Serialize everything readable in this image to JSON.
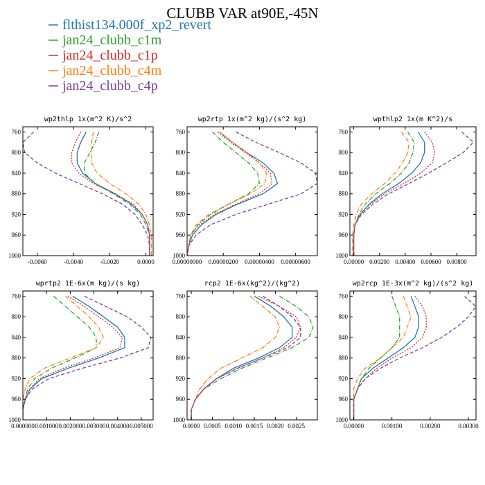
{
  "figure_title": "CLUBB VAR at90E,-45N",
  "legend": [
    {
      "label": "flthist134.000f_xp2_revert",
      "color": "#1f77b4",
      "dash": "solid"
    },
    {
      "label": "jan24_clubb_c1m",
      "color": "#2ca02c",
      "dash": "dashdot"
    },
    {
      "label": "jan24_clubb_c1p",
      "color": "#d62728",
      "dash": "dot"
    },
    {
      "label": "jan24_clubb_c4m",
      "color": "#ff7f0e",
      "dash": "dashdot"
    },
    {
      "label": "jan24_clubb_c4p",
      "color": "#7b3fa0",
      "dash": "dash"
    }
  ],
  "chart_data": [
    {
      "type": "line",
      "title": "wp2thlp  1x(m^2 K)/s^2",
      "xlim": [
        -0.0068,
        0.0004
      ],
      "ylim": [
        1000,
        750
      ],
      "yticks": [
        760,
        800,
        840,
        880,
        920,
        960,
        1000
      ],
      "xticks": [
        -0.006,
        -0.004,
        -0.002,
        0.0
      ],
      "xtick_labels": [
        "-0.0060",
        "-0.0040",
        "-0.0020",
        "0.0000"
      ],
      "y": [
        760,
        780,
        800,
        820,
        840,
        860,
        880,
        900,
        920,
        940,
        960,
        980,
        1000
      ],
      "series": [
        {
          "values": [
            -0.0033,
            -0.0036,
            -0.0038,
            -0.0038,
            -0.0035,
            -0.0028,
            -0.0017,
            -0.0008,
            -0.0002,
            0.0001,
            0.0002,
            0.0002,
            0.0002
          ]
        },
        {
          "values": [
            -0.0026,
            -0.0028,
            -0.0031,
            -0.0034,
            -0.0034,
            -0.0028,
            -0.0018,
            -0.0009,
            -0.0003,
            0.0,
            0.0002,
            0.0002,
            0.0002
          ]
        },
        {
          "values": [
            -0.0036,
            -0.0039,
            -0.0041,
            -0.0041,
            -0.0037,
            -0.0029,
            -0.0017,
            -0.0007,
            -0.0002,
            0.0001,
            0.0002,
            0.0002,
            0.0002
          ]
        },
        {
          "values": [
            -0.0029,
            -0.003,
            -0.003,
            -0.003,
            -0.0027,
            -0.002,
            -0.0011,
            -0.0004,
            0.0,
            0.0002,
            0.0003,
            0.0003,
            0.0003
          ]
        },
        {
          "values": [
            -0.0062,
            -0.0068,
            -0.0067,
            -0.006,
            -0.005,
            -0.0037,
            -0.0024,
            -0.0013,
            -0.0006,
            -0.0002,
            0.0001,
            0.0002,
            0.0002
          ]
        }
      ]
    },
    {
      "type": "line",
      "title": "wp2rtp  1x(m^2 kg)/(s^2 kg)",
      "xlim": [
        0.0,
        7.2e-06
      ],
      "ylim": [
        1000,
        750
      ],
      "yticks": [
        760,
        800,
        840,
        880,
        920,
        960,
        1000
      ],
      "xticks": [
        0.0,
        2e-06,
        4e-06,
        6e-06
      ],
      "xtick_labels": [
        "0.00000000",
        "0.00000200",
        "0.00000400",
        "0.00000600"
      ],
      "y": [
        760,
        780,
        800,
        820,
        840,
        860,
        880,
        900,
        920,
        940,
        960,
        980,
        1000
      ],
      "series": [
        {
          "values": [
            1.8e-06,
            2.5e-06,
            3.3e-06,
            4.2e-06,
            4.8e-06,
            5e-06,
            4.2e-06,
            2.8e-06,
            1.6e-06,
            8e-07,
            3e-07,
            1e-07,
            0.0
          ]
        },
        {
          "values": [
            1.4e-06,
            2e-06,
            2.7e-06,
            3.4e-06,
            3.9e-06,
            4e-06,
            3.4e-06,
            2.3e-06,
            1.3e-06,
            6e-07,
            2e-07,
            1e-07,
            0.0
          ]
        },
        {
          "values": [
            1.7e-06,
            2.4e-06,
            3.2e-06,
            4e-06,
            4.6e-06,
            4.7e-06,
            4e-06,
            2.7e-06,
            1.5e-06,
            7e-07,
            2e-07,
            1e-07,
            0.0
          ]
        },
        {
          "values": [
            1.8e-06,
            2.5e-06,
            3.3e-06,
            4e-06,
            4.4e-06,
            4.3e-06,
            3.5e-06,
            2.3e-06,
            1.2e-06,
            5e-07,
            2e-07,
            1e-07,
            0.0
          ]
        },
        {
          "values": [
            2.7e-06,
            3.8e-06,
            5.1e-06,
            6.3e-06,
            7.1e-06,
            7.2e-06,
            6.3e-06,
            4.5e-06,
            2.7e-06,
            1.3e-06,
            5e-07,
            1e-07,
            0.0
          ]
        }
      ]
    },
    {
      "type": "line",
      "title": "wpthlp2  1x(m K^2)/s",
      "xlim": [
        -0.0003,
        0.0095
      ],
      "ylim": [
        1000,
        750
      ],
      "yticks": [
        760,
        800,
        840,
        880,
        920,
        960,
        1000
      ],
      "xticks": [
        0.0,
        0.002,
        0.004,
        0.006,
        0.008
      ],
      "xtick_labels": [
        "0.00000",
        "0.00200",
        "0.00400",
        "0.00600",
        "0.00800"
      ],
      "y": [
        760,
        780,
        800,
        820,
        840,
        860,
        880,
        900,
        920,
        940,
        960,
        980,
        1000
      ],
      "series": [
        {
          "values": [
            0.005,
            0.0055,
            0.0055,
            0.0052,
            0.0045,
            0.0035,
            0.0022,
            0.0012,
            0.0005,
            0.0001,
            0.0,
            0.0,
            0.0
          ]
        },
        {
          "values": [
            0.0042,
            0.0047,
            0.0046,
            0.0043,
            0.0037,
            0.0028,
            0.0017,
            0.0009,
            0.0004,
            0.0001,
            0.0,
            0.0,
            0.0
          ]
        },
        {
          "values": [
            0.0055,
            0.0061,
            0.0063,
            0.0061,
            0.0052,
            0.0039,
            0.0024,
            0.0013,
            0.0005,
            0.0001,
            0.0,
            0.0,
            0.0
          ]
        },
        {
          "values": [
            0.0037,
            0.0043,
            0.0042,
            0.0038,
            0.0032,
            0.0024,
            0.0014,
            0.0006,
            0.0002,
            0.0,
            -0.0001,
            -0.0001,
            -0.0001
          ]
        },
        {
          "values": [
            0.0084,
            0.0093,
            0.0085,
            0.0072,
            0.0058,
            0.0043,
            0.0027,
            0.0015,
            0.0006,
            0.0001,
            0.0,
            0.0,
            0.0
          ]
        }
      ]
    },
    {
      "type": "line",
      "title": "wprtp2  1E-6x(m kg)/(s kg)",
      "xlim": [
        0.0,
        0.0055
      ],
      "ylim": [
        1000,
        750
      ],
      "yticks": [
        760,
        800,
        840,
        880,
        920,
        960,
        1000
      ],
      "xticks": [
        0.0,
        0.001,
        0.002,
        0.003,
        0.004,
        0.005
      ],
      "xtick_labels": [
        "0.000000",
        "0.001000",
        "0.002000",
        "0.003000",
        "0.004000",
        "0.005000"
      ],
      "y": [
        760,
        780,
        800,
        820,
        840,
        860,
        880,
        900,
        920,
        940,
        960,
        980,
        1000
      ],
      "series": [
        {
          "values": [
            0.0021,
            0.0028,
            0.0034,
            0.004,
            0.0043,
            0.0043,
            0.0032,
            0.0019,
            0.0008,
            0.0003,
            0.0001,
            0.0,
            0.0
          ]
        },
        {
          "values": [
            0.0013,
            0.0018,
            0.0023,
            0.0028,
            0.0031,
            0.0031,
            0.0022,
            0.0012,
            0.0005,
            0.0002,
            0.0001,
            0.0,
            0.0
          ]
        },
        {
          "values": [
            0.0019,
            0.0026,
            0.0032,
            0.0038,
            0.0042,
            0.0041,
            0.003,
            0.0017,
            0.0007,
            0.0003,
            0.0001,
            0.0,
            0.0
          ]
        },
        {
          "values": [
            0.0018,
            0.0023,
            0.0028,
            0.0032,
            0.0034,
            0.0031,
            0.002,
            0.0009,
            0.0003,
            0.0001,
            0.0,
            0.0,
            0.0
          ]
        },
        {
          "values": [
            0.0026,
            0.0035,
            0.0044,
            0.005,
            0.0054,
            0.0053,
            0.0041,
            0.0025,
            0.0011,
            0.0004,
            0.0001,
            0.0,
            0.0
          ]
        }
      ]
    },
    {
      "type": "line",
      "title": "rcp2  1E-6x(kg^2)/(kg^2)",
      "xlim": [
        -0.0001,
        0.003
      ],
      "ylim": [
        1000,
        750
      ],
      "yticks": [
        760,
        800,
        840,
        880,
        920,
        960,
        1000
      ],
      "xticks": [
        0.0,
        0.0005,
        0.001,
        0.0015,
        0.002,
        0.0025
      ],
      "xtick_labels": [
        "0.0000",
        "0.0005",
        "0.0010",
        "0.0015",
        "0.0020",
        "0.0025"
      ],
      "y": [
        760,
        780,
        800,
        820,
        840,
        860,
        880,
        900,
        920,
        940,
        960,
        980,
        1000
      ],
      "series": [
        {
          "values": [
            0.0015,
            0.0019,
            0.0022,
            0.0024,
            0.0024,
            0.0021,
            0.0016,
            0.001,
            0.0006,
            0.0003,
            0.0001,
            0.0,
            0.0
          ]
        },
        {
          "values": [
            0.0021,
            0.0025,
            0.0028,
            0.0029,
            0.0028,
            0.0024,
            0.0018,
            0.0012,
            0.0007,
            0.0003,
            0.0001,
            0.0,
            0.0
          ]
        },
        {
          "values": [
            0.0016,
            0.0021,
            0.0025,
            0.0026,
            0.0025,
            0.0022,
            0.0017,
            0.0011,
            0.0006,
            0.0003,
            0.0001,
            0.0,
            0.0
          ]
        },
        {
          "values": [
            0.0014,
            0.0017,
            0.002,
            0.0021,
            0.002,
            0.0017,
            0.0012,
            0.0007,
            0.0004,
            0.0002,
            0.0001,
            0.0,
            0.0
          ]
        },
        {
          "values": [
            0.0017,
            0.0021,
            0.0024,
            0.0026,
            0.0026,
            0.0023,
            0.0017,
            0.0011,
            0.0006,
            0.0003,
            0.0001,
            0.0,
            0.0
          ]
        }
      ]
    },
    {
      "type": "line",
      "title": "wp2rcp  1E-3x(m^2 kg)/(s^2 kg)",
      "xlim": [
        -0.0001,
        0.0032
      ],
      "ylim": [
        1000,
        750
      ],
      "yticks": [
        760,
        800,
        840,
        880,
        920,
        960,
        1000
      ],
      "xticks": [
        0.0,
        0.001,
        0.002,
        0.003
      ],
      "xtick_labels": [
        "0.00000",
        "0.00100",
        "0.00200",
        "0.00300"
      ],
      "y": [
        760,
        780,
        800,
        820,
        840,
        860,
        880,
        900,
        920,
        940,
        960,
        980,
        1000
      ],
      "series": [
        {
          "values": [
            0.0015,
            0.0016,
            0.0017,
            0.0017,
            0.0016,
            0.0013,
            0.0009,
            0.0005,
            0.0002,
            0.0001,
            0.0,
            0.0,
            0.0
          ]
        },
        {
          "values": [
            0.001,
            0.0011,
            0.0012,
            0.0012,
            0.0012,
            0.001,
            0.0007,
            0.0004,
            0.0002,
            0.0001,
            0.0,
            0.0,
            0.0
          ]
        },
        {
          "values": [
            0.0016,
            0.0018,
            0.0019,
            0.0019,
            0.0018,
            0.0015,
            0.001,
            0.0006,
            0.0003,
            0.0001,
            0.0,
            0.0,
            0.0
          ]
        },
        {
          "values": [
            0.0013,
            0.0014,
            0.0015,
            0.0014,
            0.0013,
            0.001,
            0.0007,
            0.0003,
            0.0001,
            0.0,
            0.0,
            0.0,
            0.0
          ]
        },
        {
          "values": [
            0.0029,
            0.0032,
            0.003,
            0.0027,
            0.0023,
            0.0018,
            0.0012,
            0.0007,
            0.0003,
            0.0001,
            0.0,
            0.0,
            0.0
          ]
        }
      ]
    }
  ]
}
